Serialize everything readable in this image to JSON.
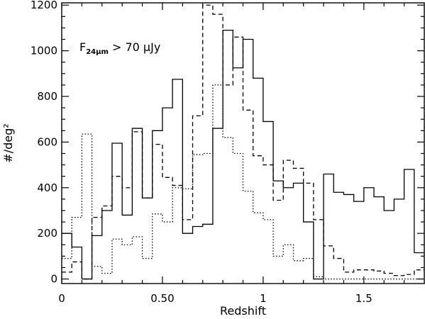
{
  "chart_data": {
    "type": "line",
    "title": "",
    "xlabel": "Redshift",
    "ylabel": "#/deg²",
    "xlim": [
      0,
      1.8
    ],
    "ylim": [
      -20,
      1210
    ],
    "annotation": {
      "text_main": "F",
      "text_sub": "24μm",
      "text_rest": " > 70 μJy"
    },
    "x_ticks": [
      {
        "value": 0,
        "label": "0"
      },
      {
        "value": 0.5,
        "label": "0.50"
      },
      {
        "value": 1.0,
        "label": "1"
      },
      {
        "value": 1.5,
        "label": "1.5"
      }
    ],
    "y_ticks": [
      {
        "value": 0,
        "label": "0"
      },
      {
        "value": 200,
        "label": "200"
      },
      {
        "value": 400,
        "label": "400"
      },
      {
        "value": 600,
        "label": "600"
      },
      {
        "value": 800,
        "label": "800"
      },
      {
        "value": 1000,
        "label": "1000"
      },
      {
        "value": 1200,
        "label": "1200"
      }
    ],
    "bin_edges": [
      0,
      0.05,
      0.1,
      0.15,
      0.2,
      0.25,
      0.3,
      0.35,
      0.4,
      0.45,
      0.5,
      0.55,
      0.6,
      0.65,
      0.7,
      0.75,
      0.8,
      0.85,
      0.9,
      0.95,
      1.0,
      1.05,
      1.1,
      1.15,
      1.2,
      1.25,
      1.3,
      1.35,
      1.4,
      1.45,
      1.5,
      1.55,
      1.6,
      1.65,
      1.7,
      1.75,
      1.8
    ],
    "series": [
      {
        "style": "solid",
        "values": [
          200,
          140,
          0,
          190,
          300,
          595,
          280,
          660,
          355,
          650,
          750,
          875,
          200,
          230,
          240,
          660,
          1090,
          925,
          1050,
          880,
          690,
          430,
          400,
          420,
          250,
          0,
          460,
          380,
          370,
          340,
          400,
          360,
          300,
          350,
          480,
          115
        ]
      },
      {
        "style": "dashed",
        "values": [
          30,
          75,
          0,
          270,
          320,
          450,
          400,
          645,
          355,
          590,
          445,
          410,
          260,
          715,
          1200,
          1160,
          850,
          1060,
          740,
          540,
          500,
          345,
          520,
          485,
          420,
          260,
          145,
          90,
          30,
          40,
          40,
          35,
          25,
          15,
          20,
          40
        ]
      },
      {
        "style": "dotted",
        "values": [
          90,
          270,
          635,
          55,
          25,
          175,
          150,
          185,
          90,
          285,
          250,
          400,
          395,
          545,
          550,
          850,
          620,
          550,
          385,
          290,
          260,
          100,
          150,
          80,
          90,
          10,
          0,
          0,
          0,
          0,
          0,
          0,
          0,
          0,
          0,
          0
        ]
      }
    ],
    "grid": false,
    "legend": "none"
  }
}
